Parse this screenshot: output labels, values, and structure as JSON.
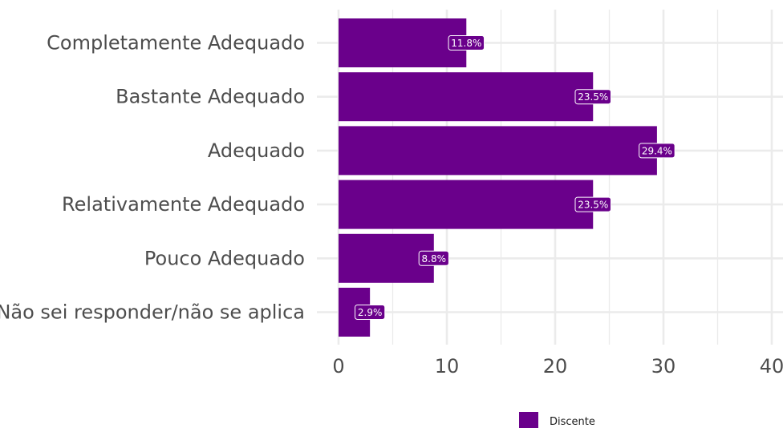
{
  "chart_data": {
    "type": "bar",
    "orientation": "horizontal",
    "categories": [
      "Completamente Adequado",
      "Bastante Adequado",
      "Adequado",
      "Relativamente Adequado",
      "Pouco Adequado",
      "Não sei responder/não se aplica"
    ],
    "values": [
      11.8,
      23.5,
      29.4,
      23.5,
      8.8,
      2.9
    ],
    "data_labels": [
      "11.8%",
      "23.5%",
      "29.4%",
      "23.5%",
      "8.8%",
      "2.9%"
    ],
    "xlim": [
      0,
      40
    ],
    "x_ticks": [
      0,
      10,
      20,
      30,
      40
    ],
    "x_tick_labels": [
      "0",
      "10",
      "20",
      "30",
      "40"
    ],
    "series": [
      {
        "name": "Discente",
        "values": [
          11.8,
          23.5,
          29.4,
          23.5,
          8.8,
          2.9
        ]
      }
    ],
    "legend": {
      "position": "bottom",
      "entries": [
        "Discente"
      ]
    },
    "grid": true,
    "colors": {
      "bar": "#6a008b",
      "grid": "#ebebeb",
      "text": "#4d4d4d"
    }
  }
}
